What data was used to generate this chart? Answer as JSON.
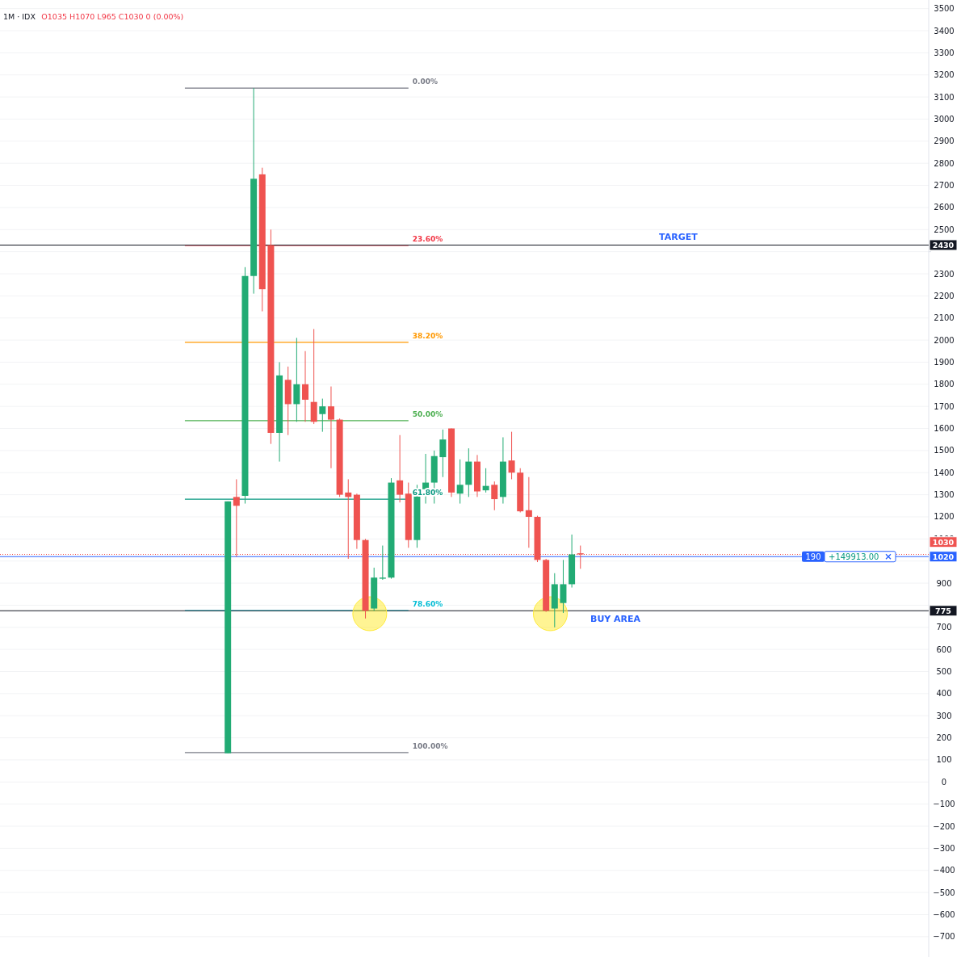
{
  "chart_data": {
    "type": "candlestick",
    "title": "1M · IDX",
    "subtitle": "O1035 H1070 L965 C1030 0 (0.00%)",
    "categories": [
      null,
      null,
      null,
      null,
      null,
      null,
      null,
      null,
      null,
      null,
      null,
      null,
      null,
      null,
      null,
      null,
      null,
      null,
      null,
      null,
      null,
      null,
      null,
      null,
      null,
      null,
      null,
      null,
      null,
      null,
      null,
      null,
      null,
      null,
      null,
      null,
      null,
      null,
      null,
      null,
      null,
      null,
      null,
      null,
      null,
      null,
      null,
      null,
      null,
      null,
      null,
      null,
      null,
      null,
      null,
      null,
      null,
      null,
      null,
      null,
      null,
      null,
      null,
      null,
      null,
      null,
      null,
      null,
      null,
      null,
      null,
      null,
      null,
      null,
      null,
      null,
      null,
      null,
      null,
      null,
      null,
      null,
      null,
      null,
      null,
      null,
      null,
      null,
      null,
      null,
      null,
      null,
      null,
      null,
      null,
      null,
      null,
      null,
      null,
      null,
      null,
      null,
      null,
      null,
      null,
      null,
      null,
      null
    ],
    "ohlc": [
      null,
      null,
      null,
      null,
      null,
      null,
      null,
      null,
      null,
      null,
      null,
      null,
      null,
      null,
      null,
      null,
      null,
      null,
      null,
      null,
      null,
      null,
      null,
      null,
      null,
      null,
      [
        130,
        1270,
        130,
        1270
      ],
      [
        1290,
        1370,
        1020,
        1250
      ],
      [
        1295,
        2330,
        1260,
        2290
      ],
      [
        2290,
        3140,
        2210,
        2730
      ],
      [
        2750,
        2780,
        2130,
        2230
      ],
      [
        2430,
        2500,
        1530,
        1580
      ],
      [
        1580,
        1900,
        1450,
        1840
      ],
      [
        1820,
        1880,
        1570,
        1710
      ],
      [
        1710,
        2010,
        1630,
        1800
      ],
      [
        1800,
        1950,
        1630,
        1730
      ],
      [
        1720,
        2050,
        1620,
        1630
      ],
      [
        1665,
        1735,
        1585,
        1700
      ],
      [
        1700,
        1790,
        1420,
        1640
      ],
      [
        1640,
        1645,
        1290,
        1300
      ],
      [
        1310,
        1370,
        1010,
        1290
      ],
      [
        1300,
        1305,
        1055,
        1095
      ],
      [
        1095,
        1100,
        740,
        775
      ],
      [
        785,
        970,
        775,
        925
      ],
      [
        920,
        1070,
        915,
        925
      ],
      [
        925,
        1375,
        920,
        1355
      ],
      [
        1365,
        1570,
        1265,
        1300
      ],
      [
        1305,
        1355,
        1060,
        1095
      ],
      [
        1095,
        1345,
        1060,
        1325
      ],
      [
        1325,
        1485,
        1260,
        1355
      ],
      [
        1355,
        1500,
        1260,
        1475
      ],
      [
        1470,
        1595,
        1380,
        1550
      ],
      [
        1600,
        1600,
        1290,
        1310
      ],
      [
        1305,
        1460,
        1260,
        1345
      ],
      [
        1345,
        1510,
        1290,
        1450
      ],
      [
        1450,
        1480,
        1290,
        1315
      ],
      [
        1320,
        1420,
        1310,
        1340
      ],
      [
        1345,
        1360,
        1230,
        1280
      ],
      [
        1290,
        1560,
        1260,
        1450
      ],
      [
        1455,
        1585,
        1370,
        1400
      ],
      [
        1400,
        1420,
        1220,
        1225
      ],
      [
        1230,
        1380,
        1060,
        1200
      ],
      [
        1200,
        1205,
        995,
        1005
      ],
      [
        1005,
        1010,
        770,
        775
      ],
      [
        785,
        945,
        700,
        895
      ],
      [
        810,
        1005,
        765,
        895
      ],
      [
        895,
        1120,
        880,
        1030
      ],
      [
        1035,
        1070,
        965,
        1030
      ],
      null,
      null,
      null,
      null,
      null,
      null,
      null,
      null,
      null,
      null,
      null,
      null,
      null,
      null,
      null,
      null,
      null,
      null,
      null,
      null,
      null,
      null,
      null,
      null,
      null,
      null,
      null,
      null,
      null,
      null,
      null,
      null,
      null,
      null,
      null,
      null,
      null,
      null,
      null,
      null
    ],
    "colors": [
      null,
      null,
      null,
      null,
      null,
      null,
      null,
      null,
      null,
      null,
      null,
      null,
      null,
      null,
      null,
      null,
      null,
      null,
      null,
      null,
      null,
      null,
      null,
      null,
      null,
      null,
      "#22ab74",
      "#ef5350",
      "#22ab74",
      "#22ab74",
      "#ef5350",
      "#ef5350",
      "#22ab74",
      "#ef5350",
      "#22ab74",
      "#ef5350",
      "#ef5350",
      "#22ab74",
      "#ef5350",
      "#ef5350",
      "#ef5350",
      "#ef5350",
      "#ef5350",
      "#22ab74",
      "#22ab74",
      "#22ab74",
      "#ef5350",
      "#ef5350",
      "#22ab74",
      "#22ab74",
      "#22ab74",
      "#22ab74",
      "#ef5350",
      "#22ab74",
      "#22ab74",
      "#ef5350",
      "#22ab74",
      "#ef5350",
      "#22ab74",
      "#ef5350",
      "#ef5350",
      "#ef5350",
      "#ef5350",
      "#ef5350",
      "#22ab74",
      "#22ab74",
      "#22ab74",
      "#ef5350",
      null,
      null,
      null,
      null,
      null,
      null,
      null,
      null,
      null,
      null,
      null,
      null,
      null,
      null,
      null,
      null,
      null,
      null,
      null,
      null,
      null,
      null,
      null,
      null,
      null,
      null,
      null,
      null,
      null,
      null,
      null,
      null,
      null,
      null,
      null,
      null,
      null,
      null,
      null,
      null
    ],
    "ylim": [
      -792,
      3539
    ],
    "yticks": [
      -700,
      -600,
      -500,
      -400,
      -300,
      -200,
      -100,
      0,
      100,
      200,
      300,
      400,
      500,
      600,
      700,
      {
        "value": 800,
        "label": null
      },
      900,
      {
        "value": 1000,
        "label": null
      },
      1100,
      1200,
      1300,
      1400,
      1500,
      1600,
      1700,
      1800,
      1900,
      2000,
      2100,
      2200,
      2300,
      {
        "value": 2400,
        "label": null
      },
      2500,
      2600,
      2700,
      2800,
      2900,
      3000,
      3100,
      3200,
      3300,
      3400,
      3500
    ],
    "grid": "y",
    "tick_labels": "y",
    "ref_lines": [
      {
        "axis": "y",
        "value": 3140,
        "color": "#787b86"
      },
      {
        "axis": "y",
        "value": 2428,
        "color": "#f23645"
      },
      {
        "axis": "y",
        "value": 1990,
        "color": "#ff9800"
      },
      {
        "axis": "y",
        "value": 1635,
        "color": "#4caf50"
      },
      {
        "axis": "y",
        "value": 1280,
        "color": "#089981"
      },
      {
        "axis": "y",
        "value": 776,
        "color": "#00bcd4"
      },
      {
        "axis": "y",
        "value": 133,
        "color": "#787b86"
      },
      {
        "axis": "y",
        "value": 2430,
        "label": "2430",
        "color": "#131722"
      },
      {
        "axis": "y",
        "value": 775,
        "label": "775",
        "color": "#131722"
      },
      {
        "axis": "y",
        "value": 1030,
        "label": "1030",
        "color": "#ef5350",
        "line_style": "dotted"
      },
      {
        "axis": "y",
        "value": 1020,
        "label": "1020",
        "color": "#2962ff"
      }
    ],
    "annotations": [
      "0.00%",
      "23.60%",
      "38.20%",
      "50.00%",
      "61.80%",
      "78.60%",
      "100.00%",
      {
        "text": "TARGET",
        "y": 2430
      },
      {
        "text": "BUY AREA",
        "y": 775
      },
      {
        "text": "190",
        "y": 1020
      },
      {
        "text": "+149913.00",
        "y": 1020
      }
    ]
  }
}
